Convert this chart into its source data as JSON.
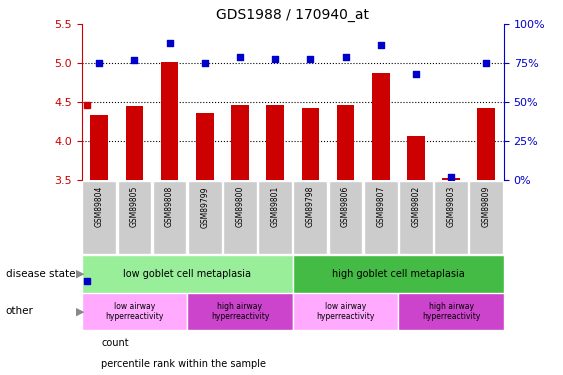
{
  "title": "GDS1988 / 170940_at",
  "samples": [
    "GSM89804",
    "GSM89805",
    "GSM89808",
    "GSM89799",
    "GSM89800",
    "GSM89801",
    "GSM89798",
    "GSM89806",
    "GSM89807",
    "GSM89802",
    "GSM89803",
    "GSM89809"
  ],
  "bar_values": [
    4.33,
    4.45,
    5.02,
    4.36,
    4.46,
    4.46,
    4.42,
    4.46,
    4.87,
    4.07,
    3.52,
    4.43
  ],
  "scatter_values": [
    75,
    77,
    88,
    75,
    79,
    78,
    78,
    79,
    87,
    68,
    2,
    75
  ],
  "ylim_left": [
    3.5,
    5.5
  ],
  "ylim_right": [
    0,
    100
  ],
  "yticks_left": [
    3.5,
    4.0,
    4.5,
    5.0,
    5.5
  ],
  "yticks_right": [
    0,
    25,
    50,
    75,
    100
  ],
  "bar_color": "#cc0000",
  "scatter_color": "#0000cc",
  "bar_bottom": 3.5,
  "disease_state_groups": [
    {
      "label": "low goblet cell metaplasia",
      "start": 0,
      "end": 6,
      "color": "#99ee99"
    },
    {
      "label": "high goblet cell metaplasia",
      "start": 6,
      "end": 12,
      "color": "#44bb44"
    }
  ],
  "other_groups": [
    {
      "label": "low airway\nhyperreactivity",
      "start": 0,
      "end": 3,
      "color": "#ffaaff"
    },
    {
      "label": "high airway\nhyperreactivity",
      "start": 3,
      "end": 6,
      "color": "#cc44cc"
    },
    {
      "label": "low airway\nhyperreactivity",
      "start": 6,
      "end": 9,
      "color": "#ffaaff"
    },
    {
      "label": "high airway\nhyperreactivity",
      "start": 9,
      "end": 12,
      "color": "#cc44cc"
    }
  ],
  "left_axis_color": "#cc0000",
  "right_axis_color": "#0000cc",
  "sample_box_color": "#cccccc",
  "legend_items": [
    {
      "label": "count",
      "color": "#cc0000"
    },
    {
      "label": "percentile rank within the sample",
      "color": "#0000cc"
    }
  ],
  "dotted_lines": [
    4.0,
    4.5,
    5.0
  ]
}
